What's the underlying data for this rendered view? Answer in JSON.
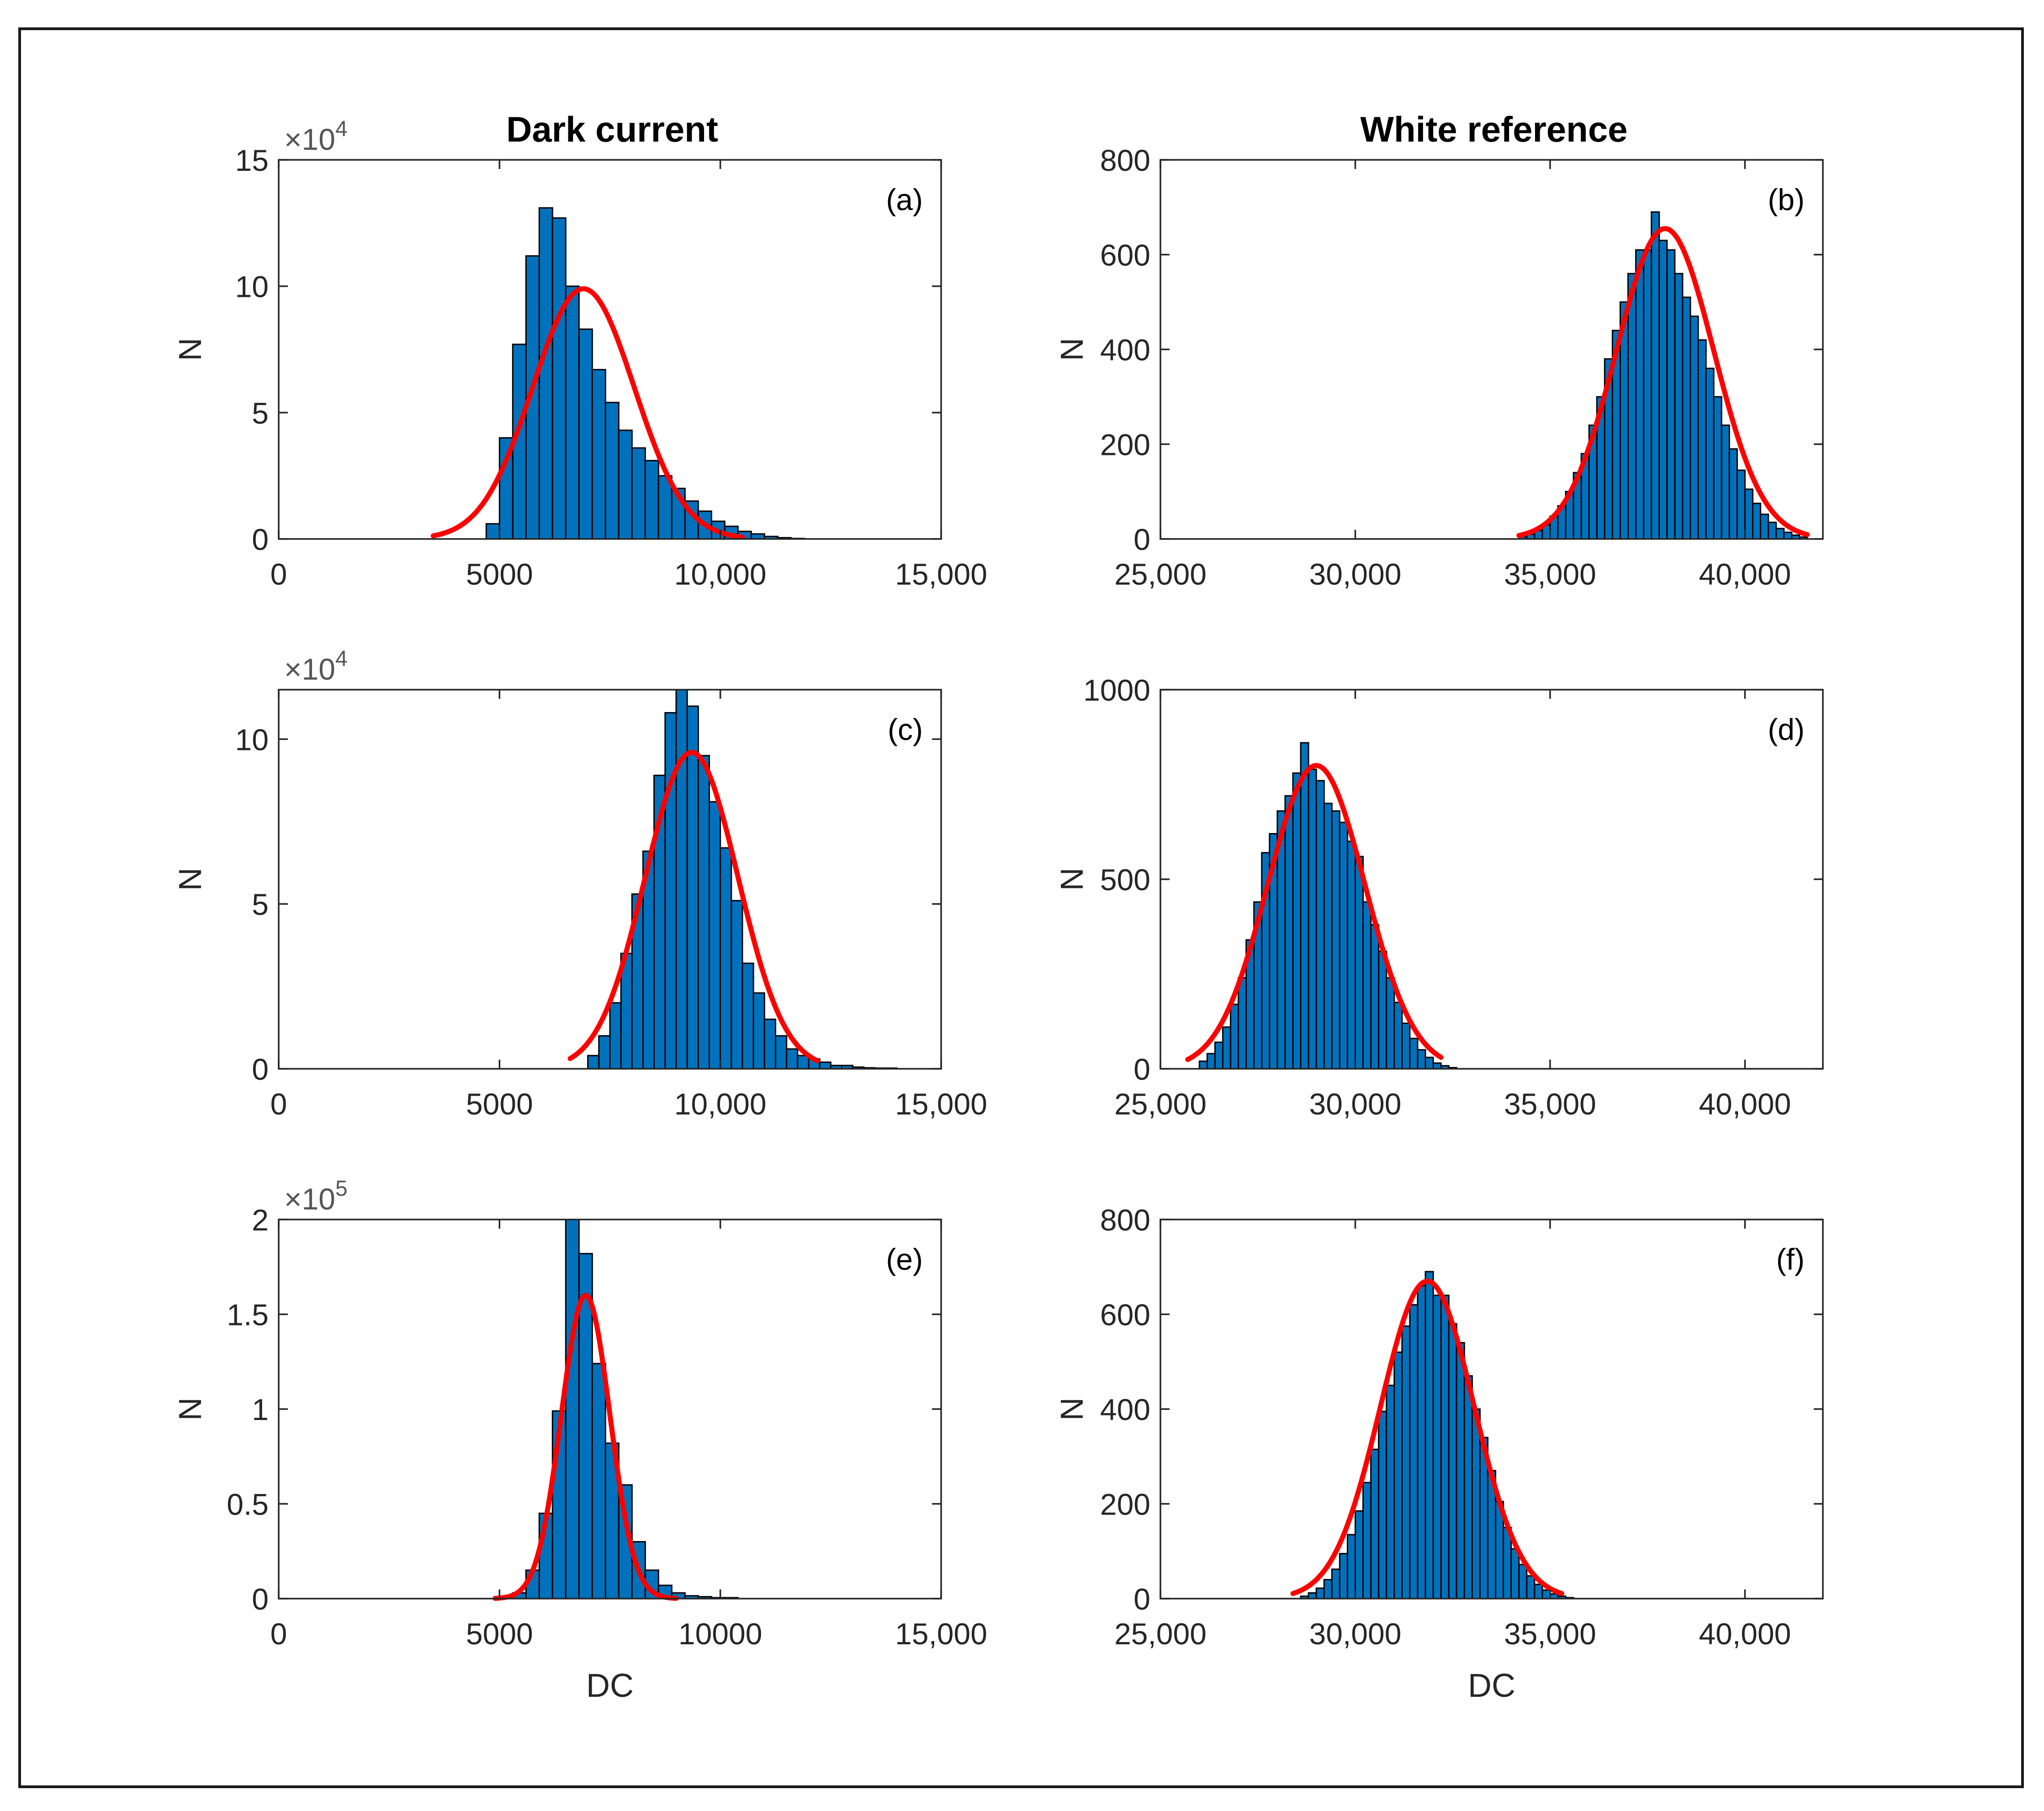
{
  "column_titles": {
    "left": "Dark current",
    "right": "White reference"
  },
  "colors": {
    "bar_fill": "#0072BD",
    "bar_edge": "#000000",
    "fit_line": "#FF0000",
    "axis": "#262626"
  },
  "chart_data": [
    {
      "id": "a",
      "panel_label": "(a)",
      "type": "bar",
      "exponent": "×10",
      "exponent_power": "4",
      "xlim": [
        0,
        15000
      ],
      "ylim": [
        0,
        15
      ],
      "xticks": [
        0,
        5000,
        10000,
        15000
      ],
      "xtick_labels": [
        "0",
        "5000",
        "10,000",
        "15,000"
      ],
      "yticks": [
        0,
        5,
        10,
        15
      ],
      "ytick_labels": [
        "0",
        "5",
        "10",
        "15"
      ],
      "ylabel": "N",
      "xlabel": "",
      "bin_width": 300,
      "bins_start": [
        4700,
        5000,
        5300,
        5600,
        5900,
        6200,
        6500,
        6800,
        7100,
        7400,
        7700,
        8000,
        8300,
        8600,
        8900,
        9200,
        9500,
        9800,
        10100,
        10400,
        10700,
        11000,
        11300,
        11600
      ],
      "values": [
        0.6,
        4.0,
        7.7,
        11.2,
        13.1,
        12.7,
        10.0,
        8.3,
        6.7,
        5.4,
        4.3,
        3.6,
        3.1,
        2.5,
        2.0,
        1.5,
        1.1,
        0.7,
        0.5,
        0.3,
        0.2,
        0.1,
        0.05,
        0.02
      ],
      "fit": {
        "type": "gaussian",
        "mean": 6900,
        "sigma": 1150,
        "peak": 9.9,
        "x_range": [
          3500,
          10500
        ]
      }
    },
    {
      "id": "b",
      "panel_label": "(b)",
      "type": "bar",
      "exponent": "",
      "exponent_power": "",
      "xlim": [
        25000,
        42000
      ],
      "ylim": [
        0,
        800
      ],
      "xticks": [
        25000,
        30000,
        35000,
        40000
      ],
      "xtick_labels": [
        "25,000",
        "30,000",
        "35,000",
        "40,000"
      ],
      "yticks": [
        0,
        200,
        400,
        600,
        800
      ],
      "ytick_labels": [
        "0",
        "200",
        "400",
        "600",
        "800"
      ],
      "ylabel": "N",
      "xlabel": "",
      "bin_width": 200,
      "bins_start": [
        34200,
        34400,
        34600,
        34800,
        35000,
        35200,
        35400,
        35600,
        35800,
        36000,
        36200,
        36400,
        36600,
        36800,
        37000,
        37200,
        37400,
        37600,
        37800,
        38000,
        38200,
        38400,
        38600,
        38800,
        39000,
        39200,
        39400,
        39600,
        39800,
        40000,
        40200,
        40400,
        40600,
        40800,
        41000,
        41200,
        41400
      ],
      "values": [
        5,
        10,
        18,
        30,
        48,
        70,
        100,
        140,
        180,
        240,
        300,
        380,
        440,
        500,
        560,
        610,
        610,
        690,
        630,
        610,
        560,
        510,
        470,
        420,
        360,
        300,
        240,
        190,
        145,
        105,
        75,
        52,
        35,
        22,
        14,
        8,
        4
      ],
      "fit": {
        "type": "gaussian",
        "mean": 37950,
        "sigma": 1250,
        "peak": 655,
        "x_range": [
          34200,
          41600
        ]
      }
    },
    {
      "id": "c",
      "panel_label": "(c)",
      "type": "bar",
      "exponent": "×10",
      "exponent_power": "4",
      "xlim": [
        0,
        15000
      ],
      "ylim": [
        0,
        11.5
      ],
      "xticks": [
        0,
        5000,
        10000,
        15000
      ],
      "xtick_labels": [
        "0",
        "5000",
        "10,000",
        "15,000"
      ],
      "yticks": [
        0,
        5,
        10
      ],
      "ytick_labels": [
        "0",
        "5",
        "10"
      ],
      "ylabel": "N",
      "xlabel": "",
      "bin_width": 250,
      "bins_start": [
        7000,
        7250,
        7500,
        7750,
        8000,
        8250,
        8500,
        8750,
        9000,
        9250,
        9500,
        9750,
        10000,
        10250,
        10500,
        10750,
        11000,
        11250,
        11500,
        11750,
        12000,
        12250,
        12500,
        12750,
        13000,
        13250,
        13500,
        13750
      ],
      "values": [
        0.4,
        1.0,
        2.0,
        3.5,
        5.3,
        6.6,
        8.9,
        10.8,
        11.6,
        11.0,
        9.5,
        8.1,
        6.7,
        5.1,
        3.2,
        2.3,
        1.5,
        1.0,
        0.6,
        0.4,
        0.3,
        0.2,
        0.1,
        0.1,
        0.05,
        0.03,
        0.02,
        0.02
      ],
      "fit": {
        "type": "gaussian",
        "mean": 9350,
        "sigma": 1050,
        "peak": 9.6,
        "x_range": [
          6600,
          12200
        ]
      }
    },
    {
      "id": "d",
      "panel_label": "(d)",
      "type": "bar",
      "exponent": "",
      "exponent_power": "",
      "xlim": [
        25000,
        42000
      ],
      "ylim": [
        0,
        1000
      ],
      "xticks": [
        25000,
        30000,
        35000,
        40000
      ],
      "xtick_labels": [
        "25,000",
        "30,000",
        "35,000",
        "40,000"
      ],
      "yticks": [
        0,
        500,
        1000
      ],
      "ytick_labels": [
        "0",
        "500",
        "1000"
      ],
      "ylabel": "N",
      "xlabel": "",
      "bin_width": 200,
      "bins_start": [
        26000,
        26200,
        26400,
        26600,
        26800,
        27000,
        27200,
        27400,
        27600,
        27800,
        28000,
        28200,
        28400,
        28600,
        28800,
        29000,
        29200,
        29400,
        29600,
        29800,
        30000,
        30200,
        30400,
        30600,
        30800,
        31000,
        31200,
        31400,
        31600,
        31800,
        32000,
        32200,
        32400
      ],
      "values": [
        20,
        40,
        70,
        110,
        170,
        240,
        340,
        440,
        570,
        620,
        680,
        720,
        780,
        860,
        790,
        760,
        700,
        680,
        650,
        600,
        560,
        440,
        380,
        310,
        240,
        175,
        120,
        80,
        50,
        30,
        15,
        8,
        3
      ],
      "fit": {
        "type": "gaussian",
        "mean": 29000,
        "sigma": 1250,
        "peak": 800,
        "x_range": [
          25700,
          32200
        ]
      }
    },
    {
      "id": "e",
      "panel_label": "(e)",
      "type": "bar",
      "exponent": "×10",
      "exponent_power": "5",
      "xlim": [
        0,
        15000
      ],
      "ylim": [
        0,
        2.0
      ],
      "xticks": [
        0,
        5000,
        10000,
        15000
      ],
      "xtick_labels": [
        "0",
        "5000",
        "10000",
        "15,000"
      ],
      "yticks": [
        0,
        0.5,
        1,
        1.5,
        2
      ],
      "ytick_labels": [
        "0",
        "0.5",
        "1",
        "1.5",
        "2"
      ],
      "ylabel": "N",
      "xlabel": "DC",
      "bin_width": 300,
      "bins_start": [
        5300,
        5600,
        5900,
        6200,
        6500,
        6800,
        7100,
        7400,
        7700,
        8000,
        8300,
        8600,
        8900,
        9200,
        9500,
        9800,
        10100
      ],
      "values": [
        0.03,
        0.15,
        0.45,
        0.99,
        2.0,
        1.82,
        1.24,
        0.82,
        0.6,
        0.3,
        0.15,
        0.07,
        0.03,
        0.015,
        0.01,
        0.005,
        0.005
      ],
      "fit": {
        "type": "gaussian",
        "mean": 6950,
        "sigma": 550,
        "peak": 1.6,
        "x_range": [
          4900,
          9000
        ]
      }
    },
    {
      "id": "f",
      "panel_label": "(f)",
      "type": "bar",
      "exponent": "",
      "exponent_power": "",
      "xlim": [
        25000,
        42000
      ],
      "ylim": [
        0,
        800
      ],
      "xticks": [
        25000,
        30000,
        35000,
        40000
      ],
      "xtick_labels": [
        "25,000",
        "30,000",
        "35,000",
        "40,000"
      ],
      "yticks": [
        0,
        200,
        400,
        600,
        800
      ],
      "ytick_labels": [
        "0",
        "200",
        "400",
        "600",
        "800"
      ],
      "ylabel": "N",
      "xlabel": "DC",
      "bin_width": 200,
      "bins_start": [
        28600,
        28800,
        29000,
        29200,
        29400,
        29600,
        29800,
        30000,
        30200,
        30400,
        30600,
        30800,
        31000,
        31200,
        31400,
        31600,
        31800,
        32000,
        32200,
        32400,
        32600,
        32800,
        33000,
        33200,
        33400,
        33600,
        33800,
        34000,
        34200,
        34400,
        34600,
        34800,
        35000,
        35200,
        35400
      ],
      "values": [
        5,
        12,
        22,
        40,
        62,
        95,
        135,
        185,
        245,
        315,
        395,
        450,
        520,
        575,
        620,
        660,
        690,
        640,
        640,
        580,
        540,
        470,
        400,
        340,
        270,
        205,
        150,
        105,
        72,
        48,
        30,
        18,
        10,
        5,
        2
      ],
      "fit": {
        "type": "gaussian",
        "mean": 31850,
        "sigma": 1200,
        "peak": 670,
        "x_range": [
          28400,
          35300
        ]
      }
    }
  ]
}
